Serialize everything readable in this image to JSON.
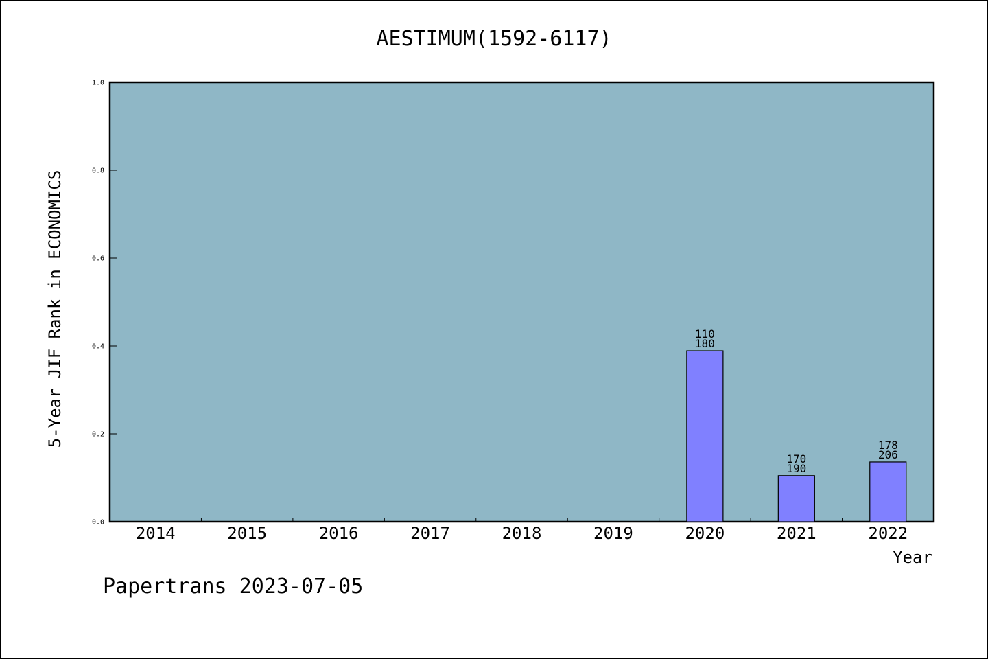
{
  "chart_data": {
    "type": "bar",
    "title": "AESTIMUM(1592-6117)",
    "xlabel": "Year",
    "ylabel": "5-Year JIF Rank in ECONOMICS",
    "categories": [
      "2014",
      "2015",
      "2016",
      "2017",
      "2018",
      "2019",
      "2020",
      "2021",
      "2022"
    ],
    "values": [
      null,
      null,
      null,
      null,
      null,
      null,
      0.389,
      0.105,
      0.136
    ],
    "bar_labels": [
      null,
      null,
      null,
      null,
      null,
      null,
      [
        "110",
        "180"
      ],
      [
        "170",
        "190"
      ],
      [
        "178",
        "206"
      ]
    ],
    "ylim": [
      0,
      1.0
    ],
    "yticks": [
      "0.0",
      "0.2",
      "0.4",
      "0.6",
      "0.8",
      "1.0"
    ],
    "grid": false,
    "colors": {
      "plot_bg": "#8fb7c6",
      "bar": "#8080ff"
    }
  },
  "footer": "Papertrans 2023-07-05"
}
